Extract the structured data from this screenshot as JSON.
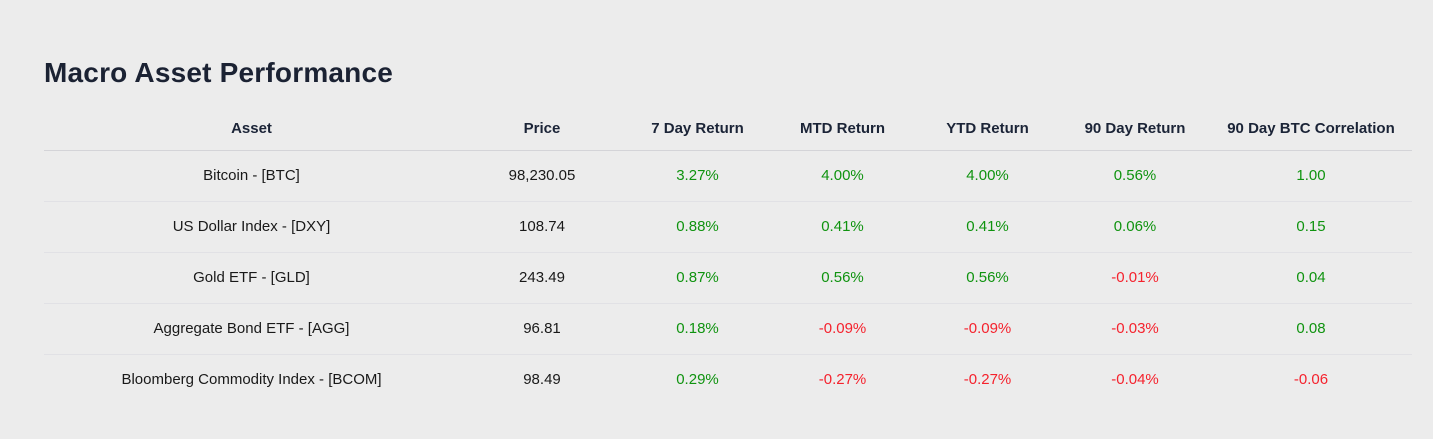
{
  "page": {
    "title": "Macro Asset Performance"
  },
  "colors": {
    "positive": "#0f930f",
    "negative": "#f5222d",
    "heading": "#1b2233",
    "background": "#ececec"
  },
  "table": {
    "columns": [
      "Asset",
      "Price",
      "7 Day Return",
      "MTD Return",
      "YTD Return",
      "90 Day Return",
      "90 Day BTC Correlation"
    ],
    "rows": [
      {
        "asset": "Bitcoin - [BTC]",
        "price": "98,230.05",
        "r7d": "3.27%",
        "mtd": "4.00%",
        "ytd": "4.00%",
        "r90d": "0.56%",
        "corr": "1.00"
      },
      {
        "asset": "US Dollar Index - [DXY]",
        "price": "108.74",
        "r7d": "0.88%",
        "mtd": "0.41%",
        "ytd": "0.41%",
        "r90d": "0.06%",
        "corr": "0.15"
      },
      {
        "asset": "Gold ETF - [GLD]",
        "price": "243.49",
        "r7d": "0.87%",
        "mtd": "0.56%",
        "ytd": "0.56%",
        "r90d": "-0.01%",
        "corr": "0.04"
      },
      {
        "asset": "Aggregate Bond ETF - [AGG]",
        "price": "96.81",
        "r7d": "0.18%",
        "mtd": "-0.09%",
        "ytd": "-0.09%",
        "r90d": "-0.03%",
        "corr": "0.08"
      },
      {
        "asset": "Bloomberg Commodity Index - [BCOM]",
        "price": "98.49",
        "r7d": "0.29%",
        "mtd": "-0.27%",
        "ytd": "-0.27%",
        "r90d": "-0.04%",
        "corr": "-0.06"
      }
    ]
  }
}
